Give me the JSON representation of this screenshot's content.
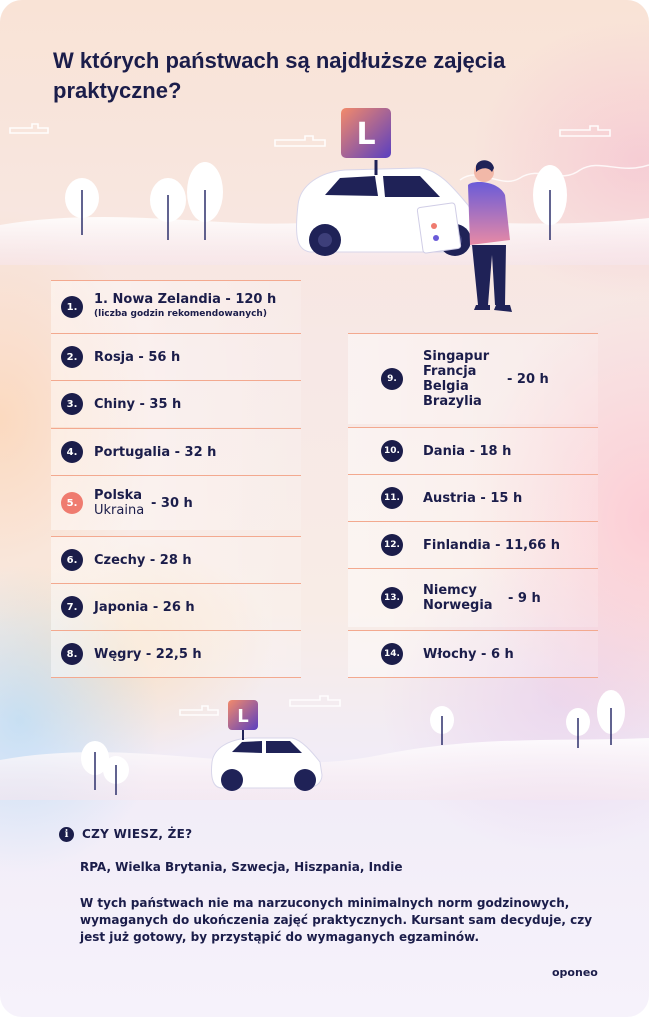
{
  "title": "W których państwach są najdłuższe zajęcia praktyczne?",
  "sign_letter": "L",
  "left_list": [
    {
      "num": "1.",
      "name": "1. Nowa Zelandia - 120 h",
      "sub": "(liczba godzin rekomendowanych)"
    },
    {
      "num": "2.",
      "name": "Rosja - 56 h"
    },
    {
      "num": "3.",
      "name": "Chiny - 35 h"
    },
    {
      "num": "4.",
      "name": "Portugalia - 32 h"
    },
    {
      "num": "5.",
      "line1": "Polska",
      "line2": "Ukraina",
      "hours": "- 30 h"
    },
    {
      "num": "6.",
      "name": "Czechy - 28 h"
    },
    {
      "num": "7.",
      "name": "Japonia - 26 h"
    },
    {
      "num": "8.",
      "name": "Węgry - 22,5 h"
    }
  ],
  "right_list": [
    {
      "num": "9.",
      "lines": [
        "Singapur",
        "Francja",
        "Belgia",
        "Brazylia"
      ],
      "hours": "- 20 h"
    },
    {
      "num": "10.",
      "name": "Dania - 18 h"
    },
    {
      "num": "11.",
      "name": "Austria - 15 h"
    },
    {
      "num": "12.",
      "name": "Finlandia - 11,66 h"
    },
    {
      "num": "13.",
      "line1": "Niemcy",
      "line2": "Norwegia",
      "hours": "- 9 h"
    },
    {
      "num": "14.",
      "name": "Włochy - 6 h"
    }
  ],
  "fact": {
    "icon": "i",
    "heading": "CZY WIESZ, ŻE?",
    "countries": "RPA, Wielka Brytania, Szwecja, Hiszpania, Indie",
    "text": "W tych państwach nie ma narzuconych minimalnych norm godzinowych, wymaganych do ukończenia zajęć praktycznych. Kursant sam decyduje, czy jest już gotowy, by przystąpić do wymaganych egzaminów."
  },
  "brand": "oponeo",
  "colors": {
    "navy": "#1b1d4a",
    "accent": "#ef7b6f",
    "divider": "#f3a98f"
  }
}
